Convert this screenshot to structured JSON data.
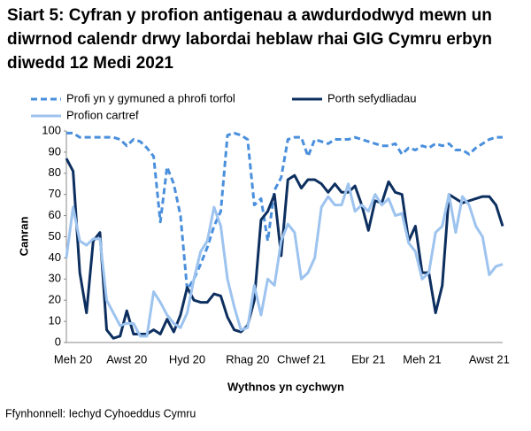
{
  "chart_data": {
    "type": "line",
    "title": "Siart 5: Cyfran y profion antigenau a awdurdodwyd mewn un diwrnod calendr drwy labordai heblaw rhai GIG Cymru erbyn diwedd 12 Medi 2021",
    "x_label": "Wythnos yn cychwyn",
    "y_label": "Canran",
    "source": "Ffynhonnell: Iechyd Cyhoeddus Cymru",
    "categories": [
      null,
      "Meh 20",
      null,
      null,
      null,
      null,
      null,
      null,
      null,
      "Awst 20",
      null,
      null,
      null,
      null,
      null,
      null,
      null,
      null,
      "Hyd 20",
      null,
      null,
      null,
      null,
      null,
      null,
      null,
      null,
      "Rhag 20",
      null,
      null,
      null,
      null,
      null,
      null,
      null,
      "Chwef 21",
      null,
      null,
      null,
      null,
      null,
      null,
      null,
      null,
      null,
      "Ebr 21",
      null,
      null,
      null,
      null,
      null,
      null,
      null,
      "Meh 21",
      null,
      null,
      null,
      null,
      null,
      null,
      null,
      null,
      null,
      "Awst 21",
      null,
      null
    ],
    "series": [
      {
        "name": "Profi yn y gymuned a phrofi torfol",
        "color": "#4a8fdc",
        "dashed": true,
        "values": [
          99,
          99,
          97,
          97,
          97,
          97,
          97,
          97,
          96,
          93,
          96,
          95,
          92,
          88,
          57,
          83,
          75,
          60,
          25,
          30,
          37,
          45,
          55,
          62,
          98,
          99,
          98,
          96,
          65,
          68,
          48,
          72,
          78,
          96,
          97,
          97,
          88,
          96,
          95,
          94,
          96,
          96,
          96,
          97,
          96,
          95,
          94,
          93,
          93,
          94,
          89,
          92,
          91,
          93,
          92,
          94,
          93,
          94,
          91,
          91,
          89,
          92,
          94,
          96,
          97,
          97
        ]
      },
      {
        "name": "Porth sefydliadau",
        "color": "#0d2f5f",
        "dashed": false,
        "values": [
          87,
          81,
          33,
          14,
          48,
          52,
          6,
          2,
          3,
          15,
          4,
          4,
          4,
          6,
          4,
          11,
          5,
          13,
          26,
          20,
          19,
          19,
          23,
          22,
          12,
          6,
          5,
          8,
          20,
          58,
          62,
          70,
          41,
          77,
          79,
          73,
          77,
          77,
          75,
          71,
          75,
          71,
          71,
          74,
          65,
          53,
          67,
          66,
          76,
          71,
          70,
          48,
          55,
          33,
          33,
          14,
          27,
          70,
          68,
          66,
          67,
          68,
          69,
          69,
          65,
          55
        ]
      },
      {
        "name": "Profion cartref",
        "color": "#9dc3ef",
        "dashed": false,
        "values": [
          40,
          64,
          48,
          46,
          49,
          49,
          20,
          14,
          8,
          9,
          9,
          3,
          3,
          24,
          19,
          13,
          9,
          7,
          14,
          30,
          43,
          48,
          64,
          55,
          30,
          17,
          6,
          7,
          27,
          13,
          30,
          27,
          48,
          56,
          52,
          30,
          33,
          40,
          64,
          69,
          65,
          65,
          75,
          62,
          65,
          62,
          70,
          65,
          68,
          60,
          61,
          47,
          43,
          30,
          33,
          52,
          55,
          70,
          52,
          69,
          65,
          55,
          50,
          32,
          36,
          37
        ]
      }
    ],
    "ylim": [
      0,
      100
    ],
    "yticks": [
      0,
      10,
      20,
      30,
      40,
      50,
      60,
      70,
      80,
      90,
      100
    ],
    "grid": false
  }
}
